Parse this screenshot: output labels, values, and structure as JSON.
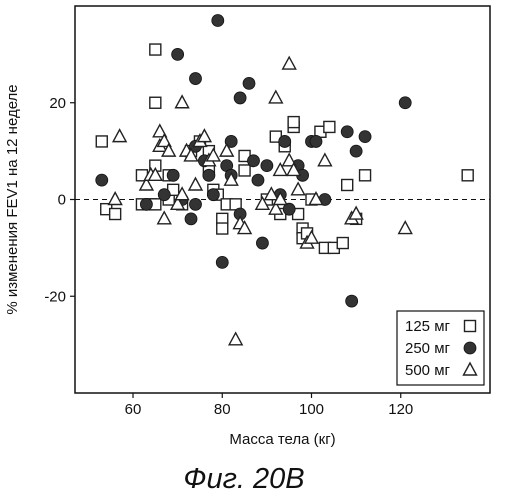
{
  "figure": {
    "caption": "Фиг. 20B"
  },
  "chart_data": {
    "type": "scatter",
    "title": "",
    "xlabel": "Масса тела (кг)",
    "ylabel": "% изменения FEV1 на 12 неделе",
    "xlim": [
      47,
      140
    ],
    "ylim": [
      -40,
      40
    ],
    "xticks": [
      60,
      80,
      100,
      120
    ],
    "yticks": [
      -20,
      0,
      20
    ],
    "xtick_labels": [
      "60",
      "80",
      "100",
      "120"
    ],
    "ytick_labels": [
      "-20",
      "0",
      "20"
    ],
    "reference_line": {
      "y": 0,
      "style": "dashed"
    },
    "grid": false,
    "legend_position": "bottom-right",
    "series": [
      {
        "name": "125 мг",
        "marker": "square",
        "points": [
          [
            53,
            12
          ],
          [
            54,
            -2
          ],
          [
            56,
            -3
          ],
          [
            62,
            5
          ],
          [
            62,
            -1
          ],
          [
            64,
            -1
          ],
          [
            65,
            31
          ],
          [
            65,
            20
          ],
          [
            65,
            7
          ],
          [
            65,
            -1
          ],
          [
            68,
            5
          ],
          [
            68,
            0
          ],
          [
            69,
            2
          ],
          [
            71,
            -1
          ],
          [
            73,
            10
          ],
          [
            75,
            12
          ],
          [
            77,
            10
          ],
          [
            77,
            6
          ],
          [
            78,
            2
          ],
          [
            79,
            1
          ],
          [
            80,
            -4
          ],
          [
            80,
            -6
          ],
          [
            81,
            -1
          ],
          [
            83,
            -1
          ],
          [
            85,
            9
          ],
          [
            85,
            6
          ],
          [
            90,
            0
          ],
          [
            92,
            13
          ],
          [
            93,
            -3
          ],
          [
            94,
            11
          ],
          [
            96,
            15
          ],
          [
            96,
            16
          ],
          [
            97,
            -3
          ],
          [
            98,
            -6
          ],
          [
            98,
            -8
          ],
          [
            99,
            -7
          ],
          [
            100,
            0
          ],
          [
            102,
            14
          ],
          [
            103,
            -10
          ],
          [
            104,
            15
          ],
          [
            105,
            -10
          ],
          [
            107,
            -9
          ],
          [
            108,
            3
          ],
          [
            110,
            -4
          ],
          [
            112,
            5
          ],
          [
            135,
            5
          ]
        ]
      },
      {
        "name": "250 мг",
        "marker": "circle",
        "points": [
          [
            53,
            4
          ],
          [
            63,
            -1
          ],
          [
            67,
            1
          ],
          [
            69,
            5
          ],
          [
            70,
            30
          ],
          [
            71,
            0
          ],
          [
            73,
            -4
          ],
          [
            74,
            11
          ],
          [
            74,
            -1
          ],
          [
            74,
            25
          ],
          [
            76,
            8
          ],
          [
            77,
            5
          ],
          [
            78,
            1
          ],
          [
            79,
            37
          ],
          [
            80,
            -13
          ],
          [
            81,
            7
          ],
          [
            82,
            12
          ],
          [
            82,
            5
          ],
          [
            84,
            -3
          ],
          [
            84,
            21
          ],
          [
            86,
            24
          ],
          [
            87,
            8
          ],
          [
            88,
            4
          ],
          [
            89,
            -9
          ],
          [
            90,
            7
          ],
          [
            93,
            1
          ],
          [
            94,
            12
          ],
          [
            95,
            -2
          ],
          [
            97,
            7
          ],
          [
            98,
            5
          ],
          [
            100,
            12
          ],
          [
            101,
            12
          ],
          [
            103,
            0
          ],
          [
            108,
            14
          ],
          [
            109,
            -21
          ],
          [
            110,
            10
          ],
          [
            112,
            13
          ],
          [
            121,
            20
          ]
        ]
      },
      {
        "name": "500 мг",
        "marker": "triangle",
        "points": [
          [
            56,
            0
          ],
          [
            57,
            13
          ],
          [
            63,
            3
          ],
          [
            64,
            5
          ],
          [
            65,
            5
          ],
          [
            66,
            14
          ],
          [
            66,
            11
          ],
          [
            67,
            -4
          ],
          [
            67,
            12
          ],
          [
            68,
            10
          ],
          [
            70,
            -1
          ],
          [
            71,
            1
          ],
          [
            71,
            20
          ],
          [
            72,
            10
          ],
          [
            73,
            9
          ],
          [
            74,
            3
          ],
          [
            75,
            12
          ],
          [
            76,
            13
          ],
          [
            77,
            8
          ],
          [
            78,
            9
          ],
          [
            81,
            10
          ],
          [
            82,
            4
          ],
          [
            83,
            -29
          ],
          [
            84,
            -5
          ],
          [
            85,
            -6
          ],
          [
            89,
            -1
          ],
          [
            91,
            1
          ],
          [
            92,
            21
          ],
          [
            92,
            -2
          ],
          [
            93,
            6
          ],
          [
            93,
            0
          ],
          [
            95,
            28
          ],
          [
            95,
            8
          ],
          [
            96,
            6
          ],
          [
            97,
            2
          ],
          [
            99,
            -9
          ],
          [
            100,
            -8
          ],
          [
            101,
            0
          ],
          [
            103,
            8
          ],
          [
            109,
            -4
          ],
          [
            110,
            -3
          ],
          [
            121,
            -6
          ]
        ]
      }
    ]
  }
}
